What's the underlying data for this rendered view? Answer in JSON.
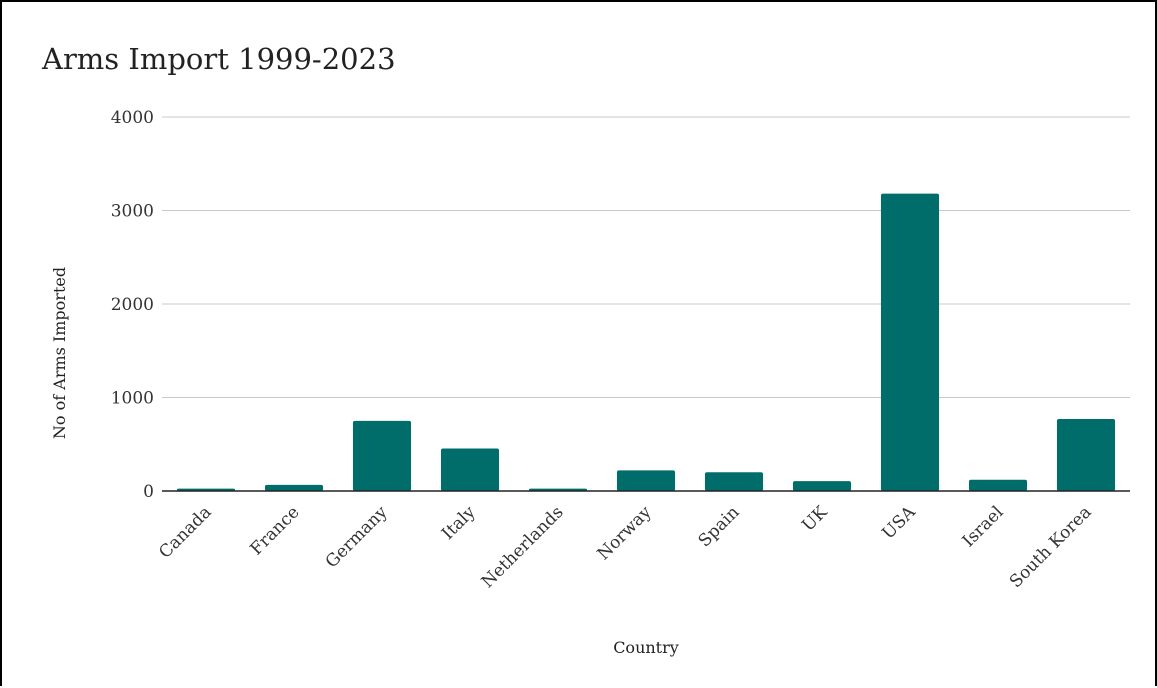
{
  "chart_data": {
    "type": "bar",
    "title": "Arms Import 1999-2023",
    "xlabel": "Country",
    "ylabel": "No of Arms Imported",
    "categories": [
      "Canada",
      "France",
      "Germany",
      "Italy",
      "Netherlands",
      "Norway",
      "Spain",
      "UK",
      "USA",
      "Israel",
      "South Korea"
    ],
    "values": [
      25,
      65,
      750,
      455,
      25,
      220,
      200,
      105,
      3180,
      120,
      770
    ],
    "ylim": [
      0,
      4000
    ],
    "yticks": [
      "0",
      "1000",
      "2000",
      "3000",
      "4000"
    ],
    "grid": true,
    "legend": "none",
    "bar_color": "#006D6A"
  }
}
